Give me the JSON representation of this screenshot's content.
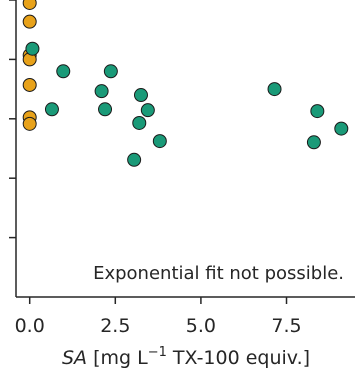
{
  "chart_data": {
    "type": "scatter",
    "title": "",
    "xlabel": {
      "var": "SA",
      "pre": " [mg L",
      "sup": "−1",
      "post": " TX-100 equiv.]"
    },
    "ylabel": "",
    "xlim": [
      -0.4,
      9.5
    ],
    "ylim": [
      0.0,
      1.0
    ],
    "xticks": [
      0.0,
      2.5,
      5.0,
      7.5
    ],
    "xtick_labels": [
      "0.0",
      "2.5",
      "5.0",
      "7.5"
    ],
    "yticks": [
      0.2,
      0.4,
      0.6,
      0.8,
      1.0
    ],
    "ytick_labels": [
      "",
      "",
      "",
      "",
      ""
    ],
    "grid": false,
    "annotation": "Exponential fit not possible.",
    "series": [
      {
        "color": "#e8a21a",
        "points": [
          {
            "x": 0.0,
            "y": 0.99
          },
          {
            "x": 0.0,
            "y": 0.927
          },
          {
            "x": 0.0,
            "y": 0.814
          },
          {
            "x": 0.0,
            "y": 0.8
          },
          {
            "x": 0.0,
            "y": 0.714
          },
          {
            "x": 0.0,
            "y": 0.605
          },
          {
            "x": 0.0,
            "y": 0.583
          }
        ]
      },
      {
        "color": "#1a9a78",
        "points": [
          {
            "x": 0.08,
            "y": 0.836
          },
          {
            "x": 0.98,
            "y": 0.76
          },
          {
            "x": 2.37,
            "y": 0.76
          },
          {
            "x": 0.65,
            "y": 0.632
          },
          {
            "x": 2.1,
            "y": 0.693
          },
          {
            "x": 2.2,
            "y": 0.632
          },
          {
            "x": 3.25,
            "y": 0.68
          },
          {
            "x": 3.45,
            "y": 0.629
          },
          {
            "x": 3.2,
            "y": 0.586
          },
          {
            "x": 3.8,
            "y": 0.525
          },
          {
            "x": 3.05,
            "y": 0.462
          },
          {
            "x": 7.15,
            "y": 0.7
          },
          {
            "x": 8.4,
            "y": 0.626
          },
          {
            "x": 9.1,
            "y": 0.567
          },
          {
            "x": 8.3,
            "y": 0.521
          }
        ]
      }
    ]
  }
}
